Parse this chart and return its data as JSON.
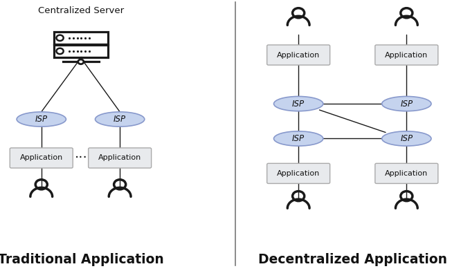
{
  "bg_color": "#ffffff",
  "isp_fill": "#c5d3ee",
  "isp_edge": "#8899cc",
  "app_fill": "#e8eaed",
  "app_edge": "#aaaaaa",
  "line_color": "#1a1a1a",
  "text_color": "#111111",
  "divider_color": "#777777",
  "title_left": "Traditional Application",
  "title_right": "Decentralized Application",
  "server_label": "Centralized Server",
  "figw": 6.79,
  "figh": 3.92,
  "dpi": 100
}
